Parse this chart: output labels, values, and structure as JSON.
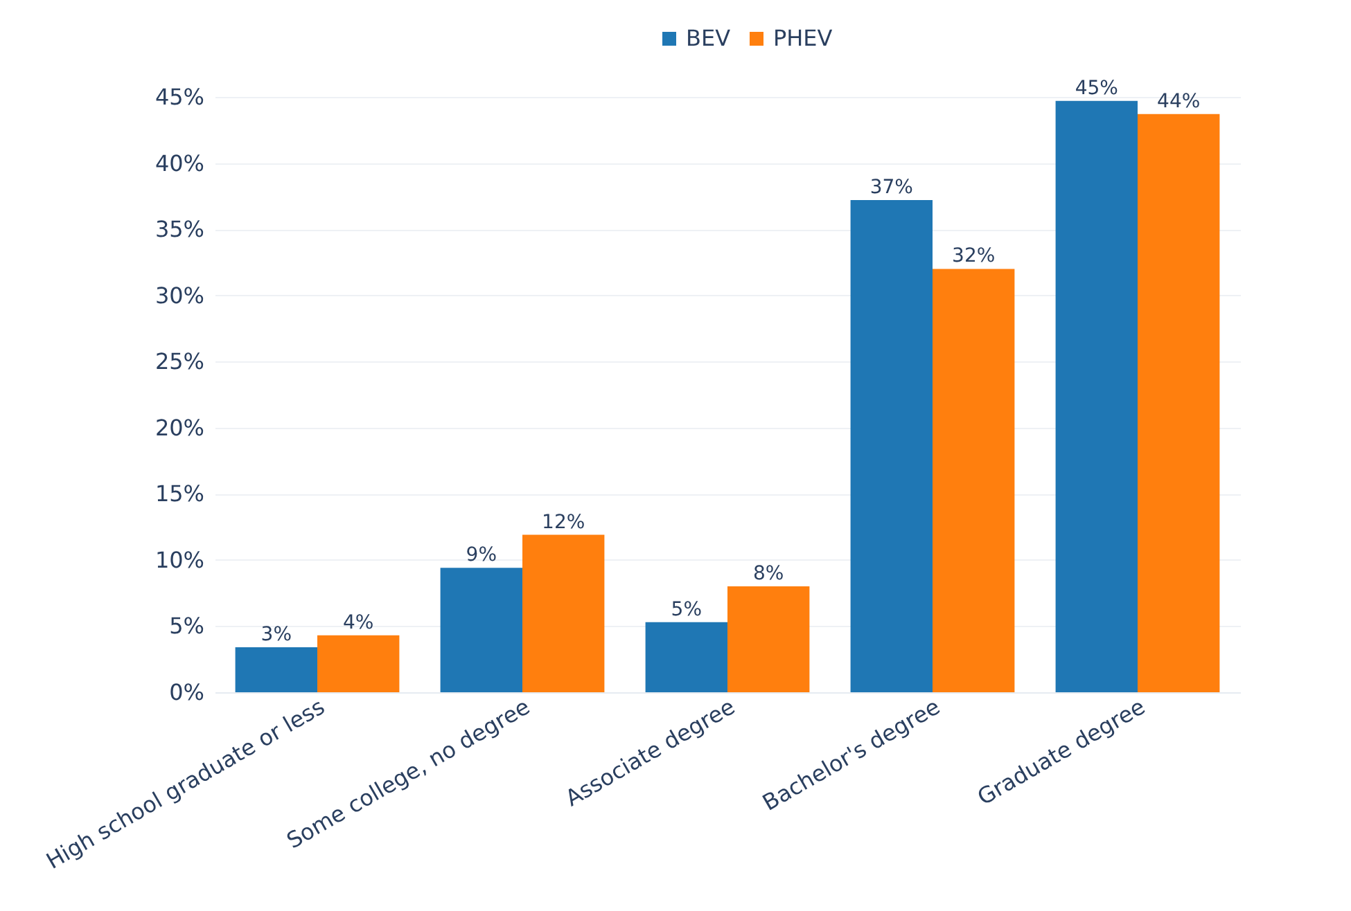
{
  "chart_data": {
    "type": "bar",
    "categories": [
      "High school graduate or less",
      "Some college, no degree",
      "Associate degree",
      "Bachelor's degree",
      "Graduate degree"
    ],
    "series": [
      {
        "name": "BEV",
        "color": "#1f77b4",
        "values": [
          3.4,
          9.4,
          5.3,
          37.2,
          44.7
        ],
        "value_labels": [
          "3%",
          "9%",
          "5%",
          "37%",
          "45%"
        ]
      },
      {
        "name": "PHEV",
        "color": "#ff7f0e",
        "values": [
          4.3,
          11.9,
          8.0,
          32.0,
          43.7
        ],
        "value_labels": [
          "4%",
          "12%",
          "8%",
          "32%",
          "44%"
        ]
      }
    ],
    "ylim": [
      0,
      45
    ],
    "yticks": [
      {
        "value": 0,
        "label": "0%"
      },
      {
        "value": 5,
        "label": "5%"
      },
      {
        "value": 10,
        "label": "10%"
      },
      {
        "value": 15,
        "label": "15%"
      },
      {
        "value": 20,
        "label": "20%"
      },
      {
        "value": 25,
        "label": "25%"
      },
      {
        "value": 30,
        "label": "30%"
      },
      {
        "value": 35,
        "label": "35%"
      },
      {
        "value": 40,
        "label": "40%"
      },
      {
        "value": 45,
        "label": "45%"
      }
    ],
    "grid": "y",
    "legend": "top"
  }
}
